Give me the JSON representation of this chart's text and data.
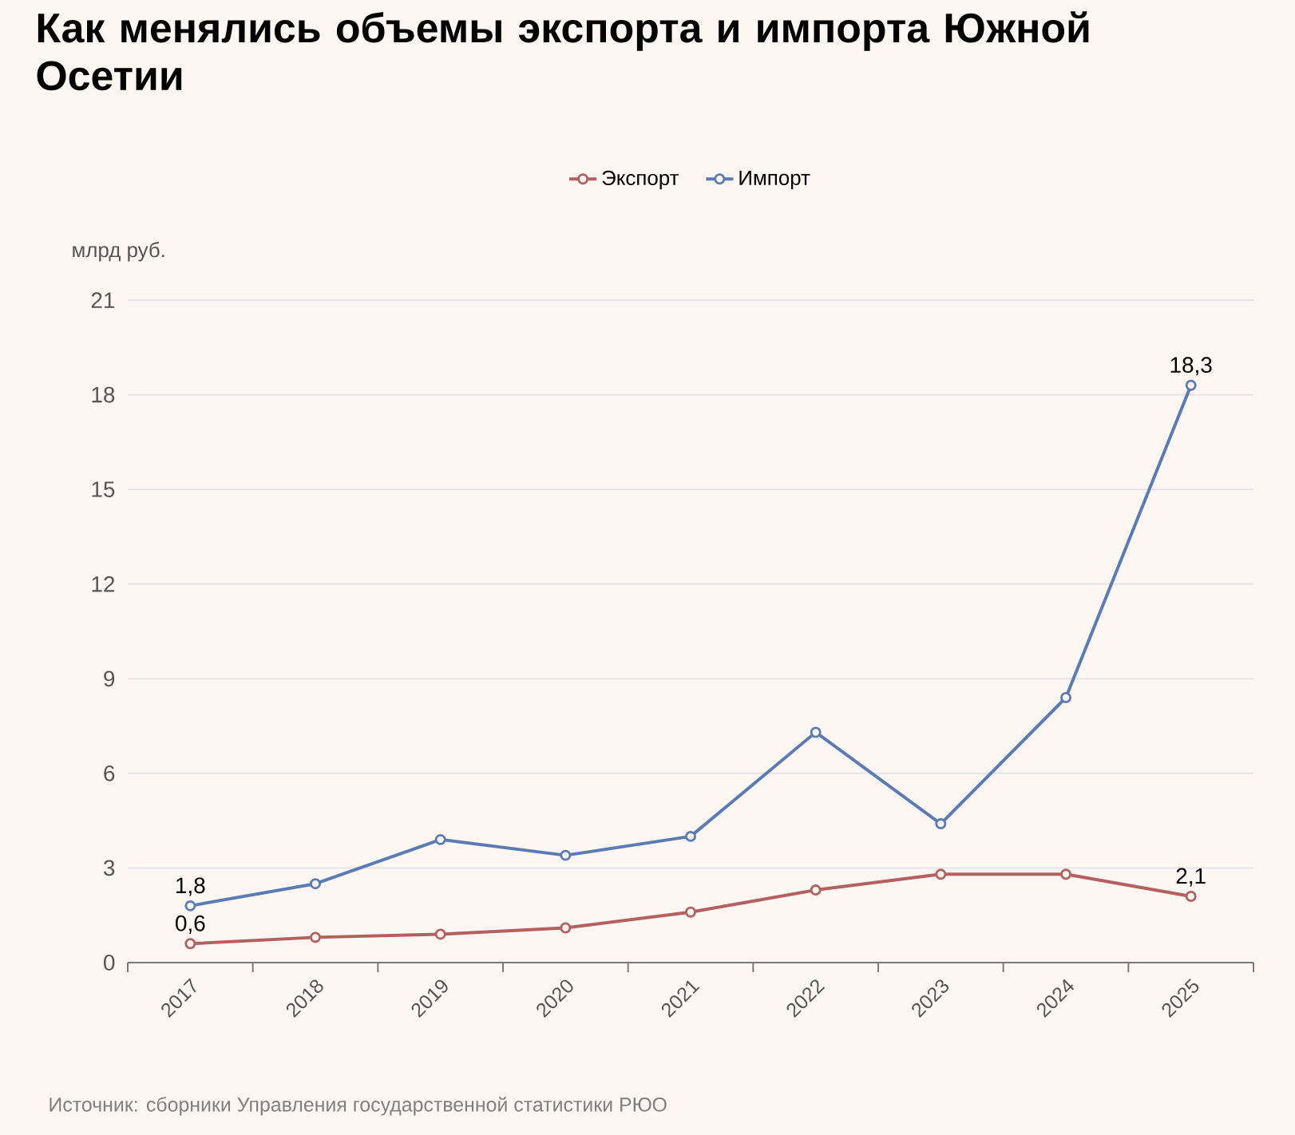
{
  "chart_data": {
    "type": "line",
    "title": "Как менялись объемы экспорта и импорта Южной Осетии",
    "ylabel": "млрд руб.",
    "categories": [
      "2017",
      "2018",
      "2019",
      "2020",
      "2021",
      "2022",
      "2023",
      "2024",
      "2025"
    ],
    "series": [
      {
        "name": "Экспорт",
        "color": "#b5605e",
        "values": [
          0.6,
          0.8,
          0.9,
          1.1,
          1.6,
          2.3,
          2.8,
          2.8,
          2.1
        ],
        "value_labels": [
          "0,6",
          null,
          null,
          null,
          null,
          null,
          null,
          null,
          "2,1"
        ]
      },
      {
        "name": "Импорт",
        "color": "#5b7bb5",
        "values": [
          1.8,
          2.5,
          3.9,
          3.4,
          4.0,
          7.3,
          4.4,
          8.4,
          18.3
        ],
        "value_labels": [
          "1,8",
          null,
          null,
          null,
          null,
          null,
          null,
          null,
          "18,3"
        ]
      }
    ],
    "ylim": [
      0,
      21
    ],
    "yticks": [
      0,
      3,
      6,
      9,
      12,
      15,
      18,
      21
    ],
    "grid": "y",
    "legend": "top",
    "marker": "circle",
    "line_style": "solid",
    "annotations": [
      "Источник: сборники Управления государственной статистики РЮО"
    ]
  }
}
